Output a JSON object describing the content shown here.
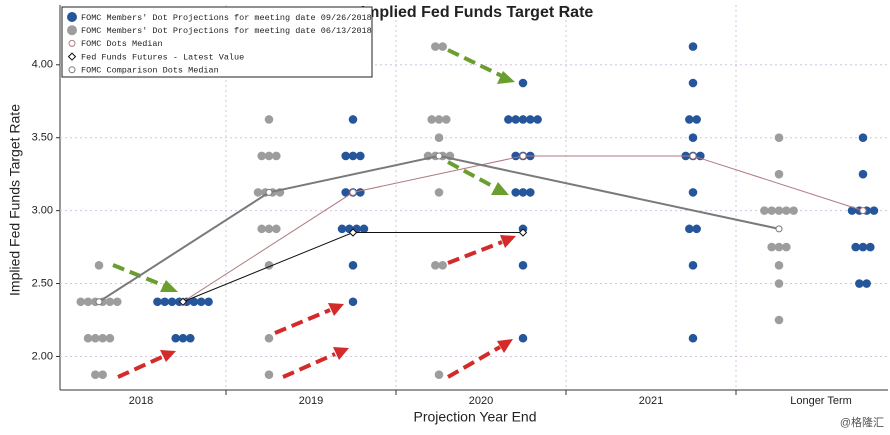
{
  "chart_data": {
    "type": "dot_plot",
    "title": "Implied Fed Funds Target Rate",
    "x_label": "Projection Year End",
    "y_label": "Implied Fed Funds Target Rate",
    "watermark": "@格隆汇",
    "categories": [
      "2018",
      "2019",
      "2020",
      "2021",
      "Longer Term"
    ],
    "ylim": [
      1.77,
      4.41
    ],
    "yticks": [
      {
        "value": 2,
        "label": "2.00"
      },
      {
        "value": 2.5,
        "label": "2.50"
      },
      {
        "value": 3,
        "label": "3.00"
      },
      {
        "value": 3.5,
        "label": "3.50"
      },
      {
        "value": 4,
        "label": "4.00"
      }
    ],
    "grid": true,
    "legend": "upper left",
    "series": [
      {
        "name": "FOMC Members' Dot Projections for meeting date 09/26/2018",
        "kind": "dots",
        "color": "#25569b",
        "side": "right",
        "points": [
          {
            "x": "2018",
            "y": 2.375,
            "count": 8
          },
          {
            "x": "2018",
            "y": 2.125,
            "count": 3
          },
          {
            "x": "2019",
            "y": 3.625,
            "count": 1
          },
          {
            "x": "2019",
            "y": 3.375,
            "count": 3
          },
          {
            "x": "2019",
            "y": 3.125,
            "count": 3
          },
          {
            "x": "2019",
            "y": 2.875,
            "count": 4
          },
          {
            "x": "2019",
            "y": 2.625,
            "count": 1
          },
          {
            "x": "2019",
            "y": 2.375,
            "count": 1
          },
          {
            "x": "2020",
            "y": 3.875,
            "count": 1
          },
          {
            "x": "2020",
            "y": 3.625,
            "count": 5
          },
          {
            "x": "2020",
            "y": 3.375,
            "count": 3
          },
          {
            "x": "2020",
            "y": 3.125,
            "count": 3
          },
          {
            "x": "2020",
            "y": 2.875,
            "count": 1
          },
          {
            "x": "2020",
            "y": 2.625,
            "count": 1
          },
          {
            "x": "2020",
            "y": 2.125,
            "count": 1
          },
          {
            "x": "2021",
            "y": 4.125,
            "count": 1
          },
          {
            "x": "2021",
            "y": 3.875,
            "count": 1
          },
          {
            "x": "2021",
            "y": 3.625,
            "count": 2
          },
          {
            "x": "2021",
            "y": 3.5,
            "count": 1
          },
          {
            "x": "2021",
            "y": 3.375,
            "count": 3
          },
          {
            "x": "2021",
            "y": 3.125,
            "count": 1
          },
          {
            "x": "2021",
            "y": 2.875,
            "count": 2
          },
          {
            "x": "2021",
            "y": 2.625,
            "count": 1
          },
          {
            "x": "2021",
            "y": 2.125,
            "count": 1
          },
          {
            "x": "Longer Term",
            "y": 3.5,
            "count": 1
          },
          {
            "x": "Longer Term",
            "y": 3.25,
            "count": 1
          },
          {
            "x": "Longer Term",
            "y": 3.0,
            "count": 4
          },
          {
            "x": "Longer Term",
            "y": 2.75,
            "count": 3
          },
          {
            "x": "Longer Term",
            "y": 2.5,
            "count": 2
          }
        ]
      },
      {
        "name": "FOMC Members' Dot Projections for meeting date 06/13/2018",
        "kind": "dots",
        "color": "#9d9d9d",
        "side": "left",
        "points": [
          {
            "x": "2018",
            "y": 2.625,
            "count": 1
          },
          {
            "x": "2018",
            "y": 2.375,
            "count": 6
          },
          {
            "x": "2018",
            "y": 2.125,
            "count": 4
          },
          {
            "x": "2018",
            "y": 1.875,
            "count": 2
          },
          {
            "x": "2019",
            "y": 3.625,
            "count": 1
          },
          {
            "x": "2019",
            "y": 3.375,
            "count": 3
          },
          {
            "x": "2019",
            "y": 3.125,
            "count": 4
          },
          {
            "x": "2019",
            "y": 2.875,
            "count": 3
          },
          {
            "x": "2019",
            "y": 2.625,
            "count": 1
          },
          {
            "x": "2019",
            "y": 2.125,
            "count": 1
          },
          {
            "x": "2019",
            "y": 1.875,
            "count": 1
          },
          {
            "x": "2020",
            "y": 4.125,
            "count": 2
          },
          {
            "x": "2020",
            "y": 3.625,
            "count": 3
          },
          {
            "x": "2020",
            "y": 3.5,
            "count": 1
          },
          {
            "x": "2020",
            "y": 3.375,
            "count": 4
          },
          {
            "x": "2020",
            "y": 3.125,
            "count": 1
          },
          {
            "x": "2020",
            "y": 2.625,
            "count": 2
          },
          {
            "x": "2020",
            "y": 1.875,
            "count": 1
          },
          {
            "x": "Longer Term",
            "y": 3.5,
            "count": 1
          },
          {
            "x": "Longer Term",
            "y": 3.25,
            "count": 1
          },
          {
            "x": "Longer Term",
            "y": 3.0,
            "count": 5
          },
          {
            "x": "Longer Term",
            "y": 2.75,
            "count": 3
          },
          {
            "x": "Longer Term",
            "y": 2.625,
            "count": 1
          },
          {
            "x": "Longer Term",
            "y": 2.5,
            "count": 1
          },
          {
            "x": "Longer Term",
            "y": 2.25,
            "count": 1
          }
        ]
      },
      {
        "name": "FOMC Dots Median",
        "kind": "line",
        "color": "#b07a80",
        "side": "right",
        "marker": "circle",
        "x": [
          "2018",
          "2019",
          "2020",
          "2021",
          "Longer Term"
        ],
        "values": [
          2.375,
          3.125,
          3.375,
          3.375,
          3.0
        ]
      },
      {
        "name": "Fed Funds Futures - Latest Value",
        "kind": "line",
        "color": "#111111",
        "side": "right",
        "marker": "diamond",
        "x": [
          "2018",
          "2019",
          "2020"
        ],
        "values": [
          2.375,
          2.85,
          2.85
        ]
      },
      {
        "name": "FOMC Comparison Dots Median",
        "kind": "line",
        "color": "#7a7a7a",
        "side": "left",
        "marker": "circle",
        "x": [
          "2018",
          "2019",
          "2020",
          "Longer Term"
        ],
        "values": [
          2.375,
          3.125,
          3.375,
          2.875
        ]
      }
    ]
  }
}
